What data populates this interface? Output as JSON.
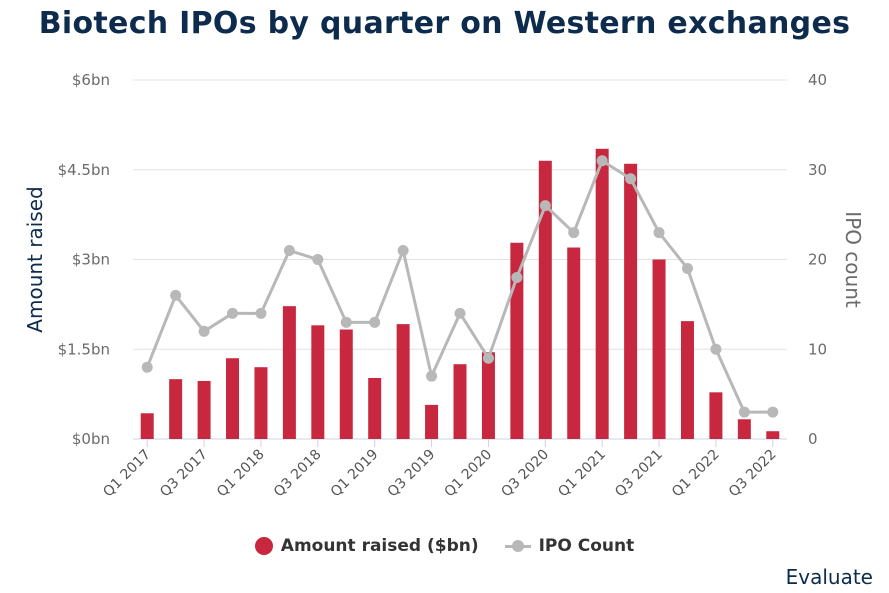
{
  "title": "Biotech IPOs by quarter on Western exchanges",
  "brand": "Evaluate",
  "colors": {
    "bar": "#c8283f",
    "line": "#b8b8b8",
    "title": "#0d2b4c"
  },
  "legend": [
    {
      "label": "Amount raised ($bn)"
    },
    {
      "label": "IPO Count"
    }
  ],
  "chart_data": {
    "type": "bar+line",
    "title": "Biotech IPOs by quarter on Western exchanges",
    "xlabel": "",
    "ylabel_left": "Amount raised",
    "ylabel_right": "IPO count",
    "ylim_left": [
      0,
      6
    ],
    "ylim_right": [
      0,
      40
    ],
    "yticks_left": [
      "$0bn",
      "$1.5bn",
      "$3bn",
      "$4.5bn",
      "$6bn"
    ],
    "yticks_right": [
      "0",
      "10",
      "20",
      "30",
      "40"
    ],
    "categories": [
      "Q1 2017",
      "Q2 2017",
      "Q3 2017",
      "Q4 2017",
      "Q1 2018",
      "Q2 2018",
      "Q3 2018",
      "Q4 2018",
      "Q1 2019",
      "Q2 2019",
      "Q3 2019",
      "Q4 2019",
      "Q1 2020",
      "Q2 2020",
      "Q3 2020",
      "Q4 2020",
      "Q1 2021",
      "Q2 2021",
      "Q3 2021",
      "Q4 2021",
      "Q1 2022",
      "Q2 2022",
      "Q3 2022"
    ],
    "xtick_labels": [
      "Q1 2017",
      "Q3 2017",
      "Q1 2018",
      "Q3 2018",
      "Q1 2019",
      "Q3 2019",
      "Q1 2020",
      "Q3 2020",
      "Q1 2021",
      "Q3 2021",
      "Q1 2022",
      "Q3 2022"
    ],
    "series": [
      {
        "name": "Amount raised ($bn)",
        "type": "bar",
        "axis": "left",
        "values": [
          0.43,
          1.0,
          0.97,
          1.35,
          1.2,
          2.22,
          1.9,
          1.83,
          1.02,
          1.92,
          0.57,
          1.25,
          1.45,
          3.28,
          4.65,
          3.2,
          4.85,
          4.6,
          3.0,
          1.97,
          0.78,
          0.33,
          0.13
        ]
      },
      {
        "name": "IPO Count",
        "type": "line",
        "axis": "right",
        "values": [
          8,
          16,
          12,
          14,
          14,
          21,
          20,
          13,
          13,
          21,
          7,
          14,
          9,
          18,
          26,
          23,
          31,
          29,
          23,
          19,
          10,
          3,
          3
        ]
      }
    ],
    "grid": true,
    "legend_position": "bottom"
  }
}
